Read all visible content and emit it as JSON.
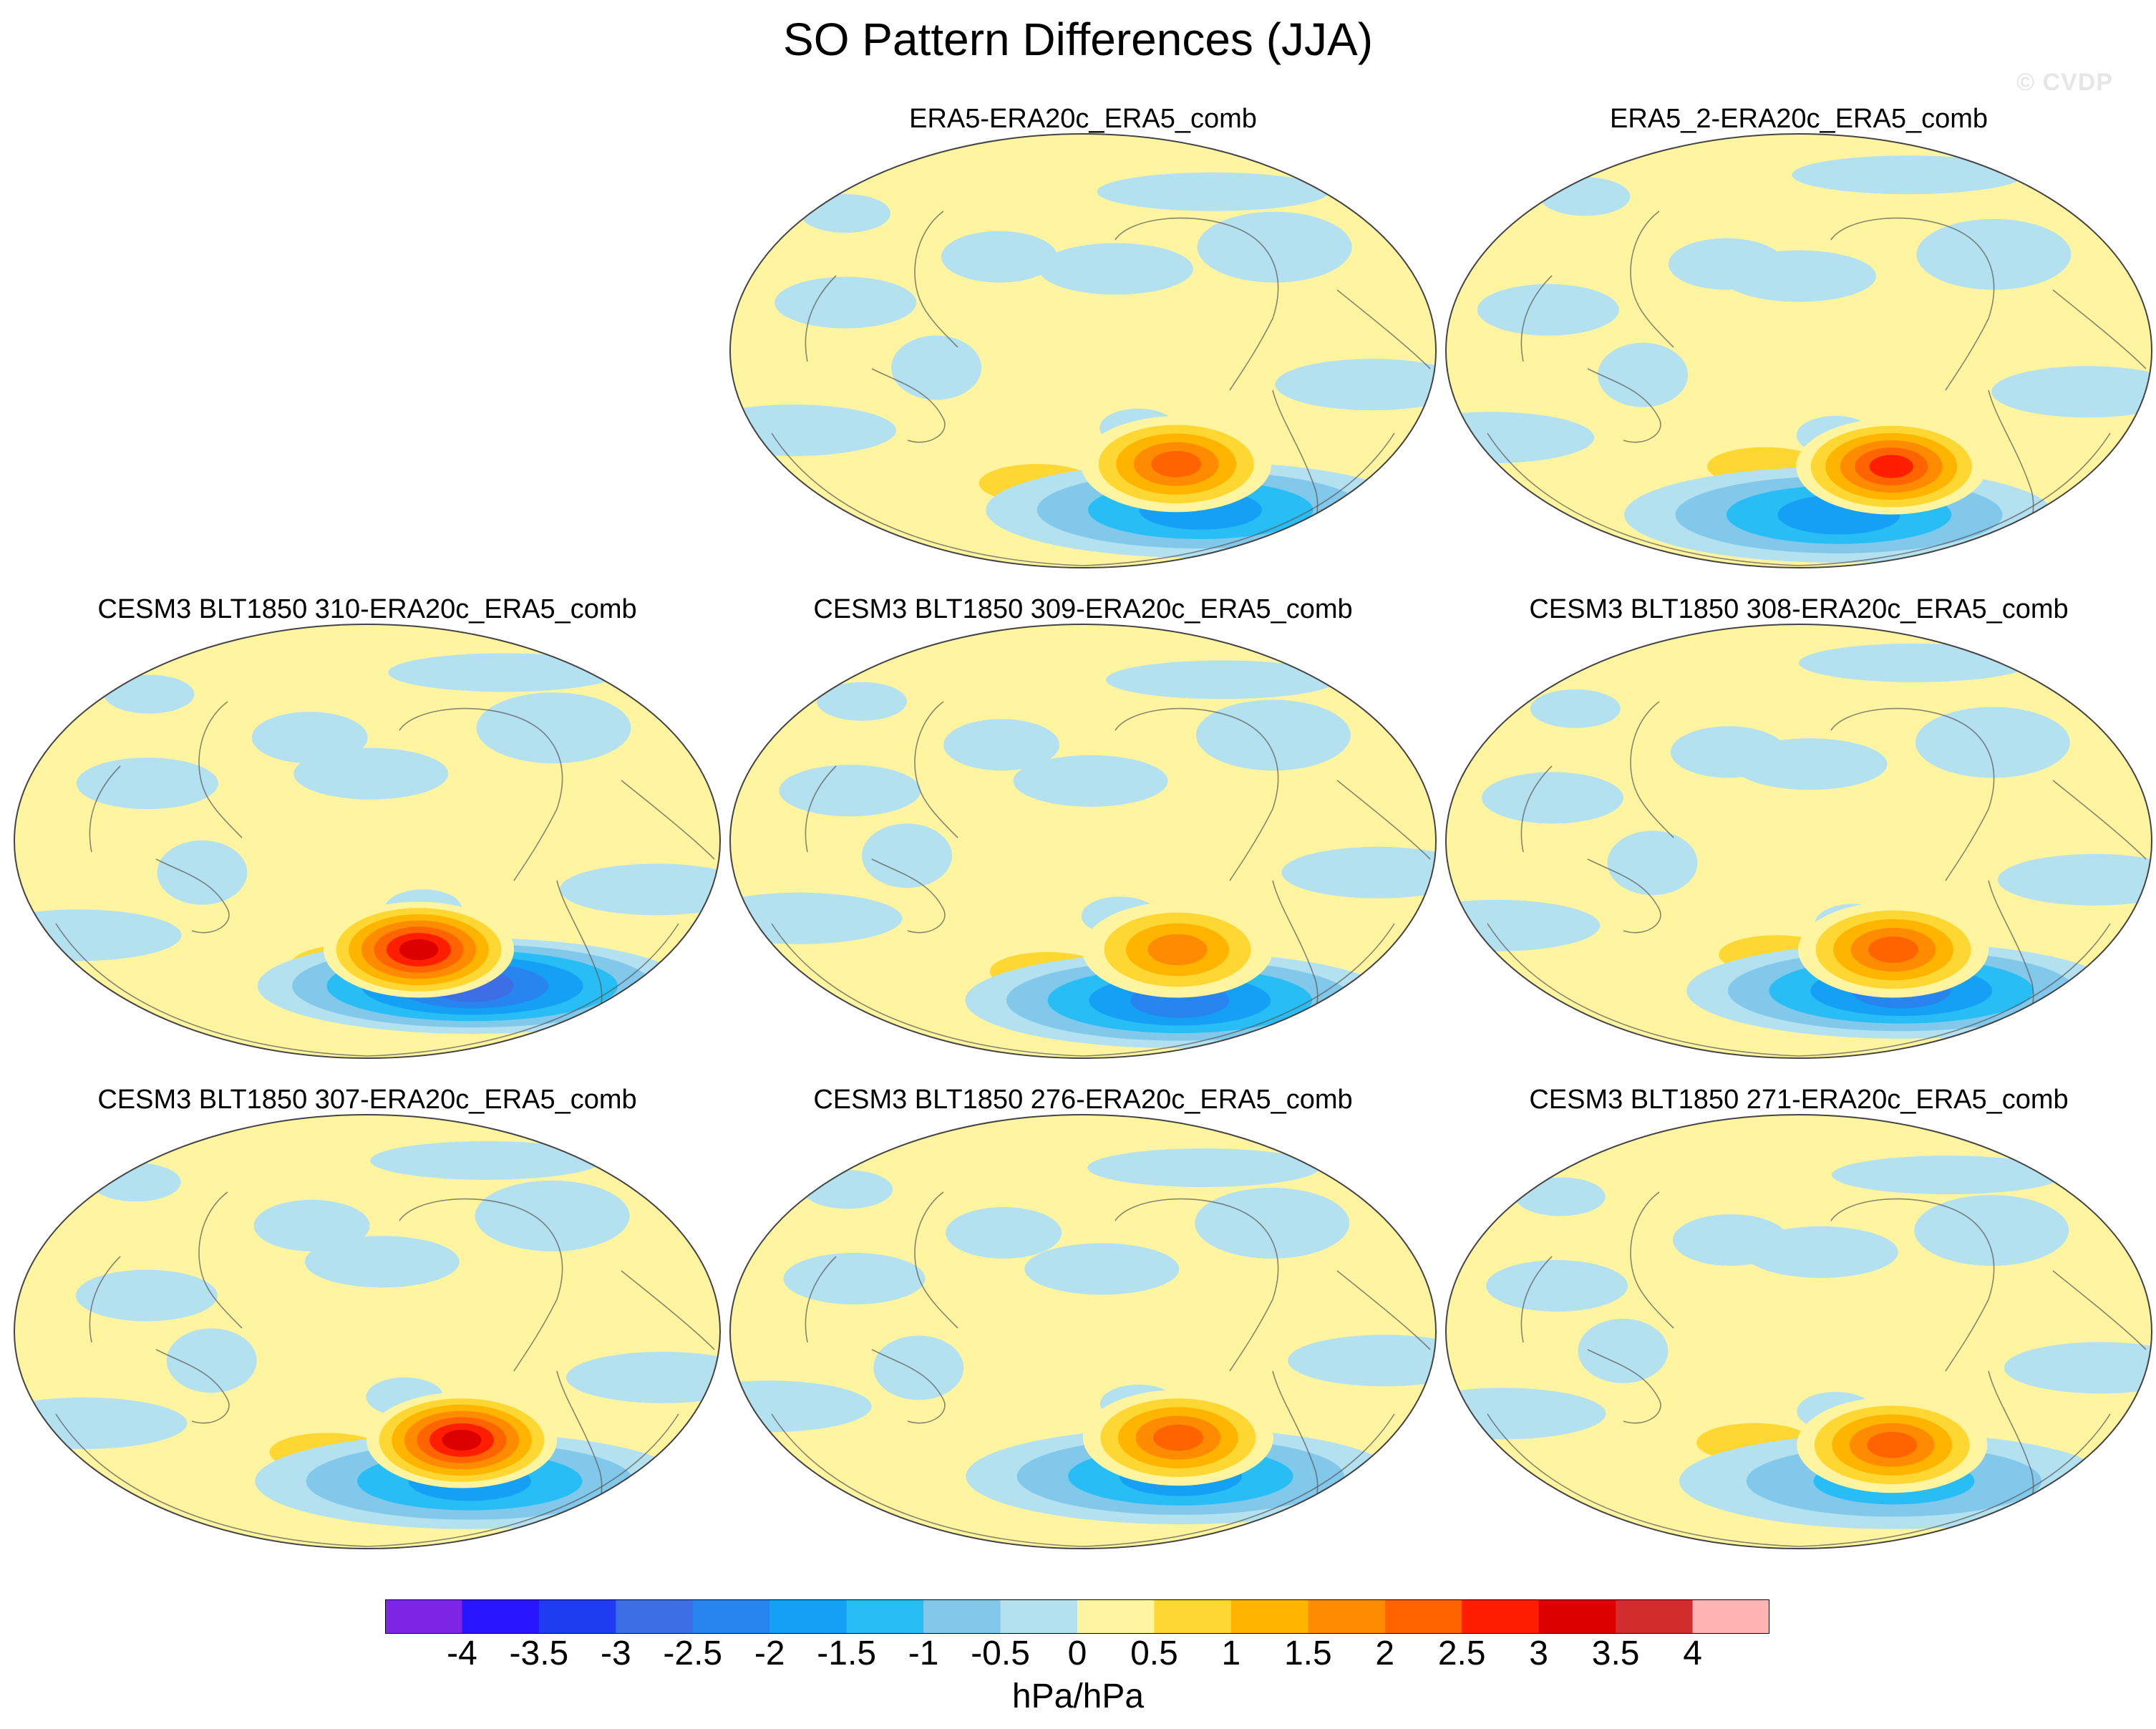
{
  "title": "SO Pattern Differences (JJA)",
  "copyright": "© CVDP",
  "colorbar": {
    "colors": [
      "#7f26e6",
      "#2915ff",
      "#1e3cf0",
      "#3c6ee6",
      "#2885f0",
      "#14a0f5",
      "#28bef5",
      "#82c8eb",
      "#b4e1f0",
      "#fff5a0",
      "#ffd732",
      "#ffb400",
      "#ff8c00",
      "#ff6400",
      "#ff1e00",
      "#dc0000",
      "#d22d2d",
      "#ffb4b4"
    ],
    "labels": [
      "-4",
      "-3.5",
      "-3",
      "-2.5",
      "-2",
      "-1.5",
      "-1",
      "-0.5",
      "0",
      "0.5",
      "1",
      "1.5",
      "2",
      "2.5",
      "3",
      "3.5",
      "4"
    ],
    "units": "hPa/hPa"
  },
  "chart_data": [
    {
      "type": "contour-map",
      "title": "ERA5-ERA20c_ERA5_comb",
      "projection": "robinson",
      "levels": [
        -4,
        -3.5,
        -3,
        -2.5,
        -2,
        -1.5,
        -1,
        -0.5,
        0,
        0.5,
        1,
        1.5,
        2,
        2.5,
        3,
        3.5,
        4
      ],
      "units": "hPa/hPa",
      "max_center": {
        "lon": -125,
        "lat": -47,
        "value": 2.0
      },
      "min_center": {
        "lon": -95,
        "lat": -66,
        "value": -1.5
      }
    },
    {
      "type": "contour-map",
      "title": "ERA5_2-ERA20c_ERA5_comb",
      "projection": "robinson",
      "levels": [
        -4,
        -3.5,
        -3,
        -2.5,
        -2,
        -1.5,
        -1,
        -0.5,
        0,
        0.5,
        1,
        1.5,
        2,
        2.5,
        3,
        3.5,
        4
      ],
      "units": "hPa/hPa",
      "max_center": {
        "lon": -125,
        "lat": -48,
        "value": 2.5
      },
      "min_center": {
        "lon": -150,
        "lat": -68,
        "value": -1.5
      }
    },
    {
      "type": "contour-map",
      "title": "CESM3 BLT1850 310-ERA20c_ERA5_comb",
      "projection": "robinson",
      "levels": [
        -4,
        -3.5,
        -3,
        -2.5,
        -2,
        -1.5,
        -1,
        -0.5,
        0,
        0.5,
        1,
        1.5,
        2,
        2.5,
        3,
        3.5,
        4
      ],
      "units": "hPa/hPa",
      "max_center": {
        "lon": -150,
        "lat": -45,
        "value": 3.0
      },
      "min_center": {
        "lon": -110,
        "lat": -60,
        "value": -2.5
      }
    },
    {
      "type": "contour-map",
      "title": "CESM3 BLT1850 309-ERA20c_ERA5_comb",
      "projection": "robinson",
      "levels": [
        -4,
        -3.5,
        -3,
        -2.5,
        -2,
        -1.5,
        -1,
        -0.5,
        0,
        0.5,
        1,
        1.5,
        2,
        2.5,
        3,
        3.5,
        4
      ],
      "units": "hPa/hPa",
      "max_center": {
        "lon": -125,
        "lat": -45,
        "value": 1.5
      },
      "min_center": {
        "lon": -110,
        "lat": -66,
        "value": -2.0
      }
    },
    {
      "type": "contour-map",
      "title": "CESM3 BLT1850 308-ERA20c_ERA5_comb",
      "projection": "robinson",
      "levels": [
        -4,
        -3.5,
        -3,
        -2.5,
        -2,
        -1.5,
        -1,
        -0.5,
        0,
        0.5,
        1,
        1.5,
        2,
        2.5,
        3,
        3.5,
        4
      ],
      "units": "hPa/hPa",
      "max_center": {
        "lon": -125,
        "lat": -45,
        "value": 2.0
      },
      "min_center": {
        "lon": -110,
        "lat": -62,
        "value": -2.0
      }
    },
    {
      "type": "contour-map",
      "title": "CESM3 BLT1850 307-ERA20c_ERA5_comb",
      "projection": "robinson",
      "levels": [
        -4,
        -3.5,
        -3,
        -2.5,
        -2,
        -1.5,
        -1,
        -0.5,
        0,
        0.5,
        1,
        1.5,
        2,
        2.5,
        3,
        3.5,
        4
      ],
      "units": "hPa/hPa",
      "max_center": {
        "lon": -125,
        "lat": -45,
        "value": 3.0
      },
      "min_center": {
        "lon": -110,
        "lat": -62,
        "value": -1.5
      }
    },
    {
      "type": "contour-map",
      "title": "CESM3 BLT1850 276-ERA20c_ERA5_comb",
      "projection": "robinson",
      "levels": [
        -4,
        -3.5,
        -3,
        -2.5,
        -2,
        -1.5,
        -1,
        -0.5,
        0,
        0.5,
        1,
        1.5,
        2,
        2.5,
        3,
        3.5,
        4
      ],
      "units": "hPa/hPa",
      "max_center": {
        "lon": -125,
        "lat": -44,
        "value": 2.0
      },
      "min_center": {
        "lon": -115,
        "lat": -60,
        "value": -1.5
      }
    },
    {
      "type": "contour-map",
      "title": "CESM3 BLT1850 271-ERA20c_ERA5_comb",
      "projection": "robinson",
      "levels": [
        -4,
        -3.5,
        -3,
        -2.5,
        -2,
        -1.5,
        -1,
        -0.5,
        0,
        0.5,
        1,
        1.5,
        2,
        2.5,
        3,
        3.5,
        4
      ],
      "units": "hPa/hPa",
      "max_center": {
        "lon": -125,
        "lat": -47,
        "value": 2.0
      },
      "min_center": {
        "lon": -115,
        "lat": -62,
        "value": -1.0
      }
    }
  ]
}
